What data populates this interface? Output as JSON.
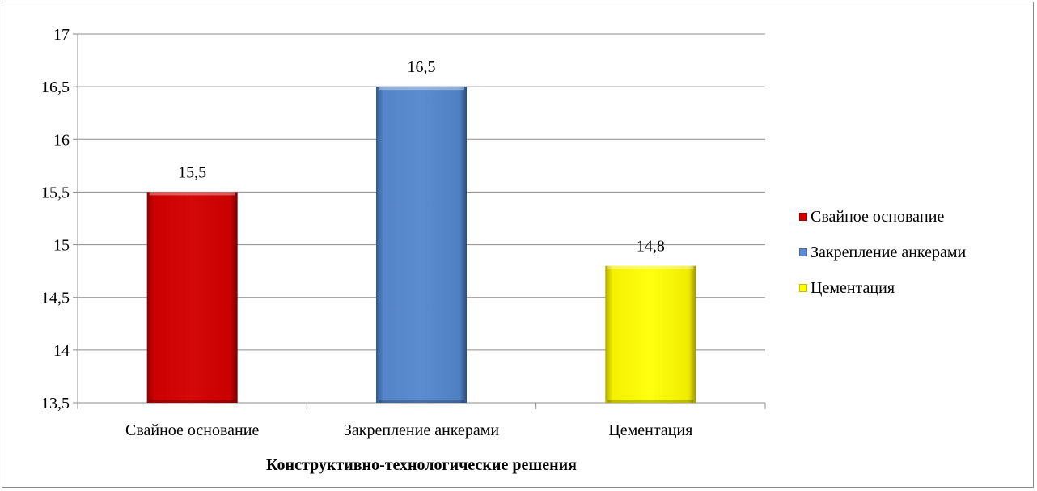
{
  "chart_data": {
    "type": "bar",
    "title": "",
    "xlabel": "Конструктивно-технологические решения",
    "ylabel": "",
    "categories": [
      "Свайное основание",
      "Закрепление анкерами",
      "Цементация"
    ],
    "values": [
      15.5,
      16.5,
      14.8
    ],
    "value_labels": [
      "15,5",
      "16,5",
      "14,8"
    ],
    "ylim": [
      13.5,
      17
    ],
    "y_ticks": [
      13.5,
      14,
      14.5,
      15,
      15.5,
      16,
      16.5,
      17
    ],
    "y_tick_labels": [
      "13,5",
      "14",
      "14,5",
      "15",
      "15,5",
      "16",
      "16,5",
      "17"
    ],
    "colors": [
      "#d00000",
      "#5b8cd0",
      "#ffff00"
    ],
    "grid": true,
    "legend_position": "right",
    "legend": [
      {
        "label": "Свайное основание",
        "color": "#d00000"
      },
      {
        "label": "Закрепление анкерами",
        "color": "#5b8cd0"
      },
      {
        "label": "Цементация",
        "color": "#ffff00"
      }
    ]
  }
}
